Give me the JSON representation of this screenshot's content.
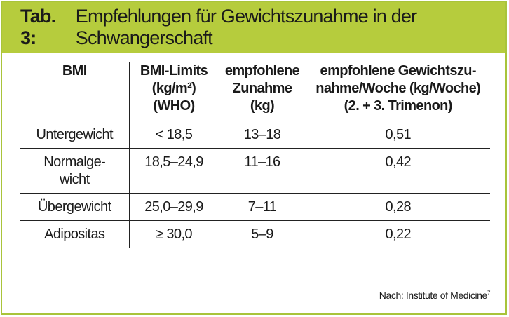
{
  "title": {
    "label": "Tab. 3:",
    "text": "Empfehlungen für Gewichtszunahme in der Schwangerschaft"
  },
  "table": {
    "headers": [
      "BMI",
      "BMI-Limits\n(kg/m²)\n(WHO)",
      "empfohlene\nZunahme\n(kg)",
      "empfohlene Gewichtszu-\nnahme/Woche (kg/Woche)\n(2. + 3. Trimenon)"
    ],
    "rows": [
      [
        "Untergewicht",
        "< 18,5",
        "13–18",
        "0,51"
      ],
      [
        "Normalge-\nwicht",
        "18,5–24,9",
        "11–16",
        "0,42"
      ],
      [
        "Übergewicht",
        "25,0–29,9",
        "7–11",
        "0,28"
      ],
      [
        "Adipositas",
        "≥ 30,0",
        "5–9",
        "0,22"
      ]
    ]
  },
  "source": {
    "text": "Nach: Institute of Medicine",
    "ref": "7"
  }
}
